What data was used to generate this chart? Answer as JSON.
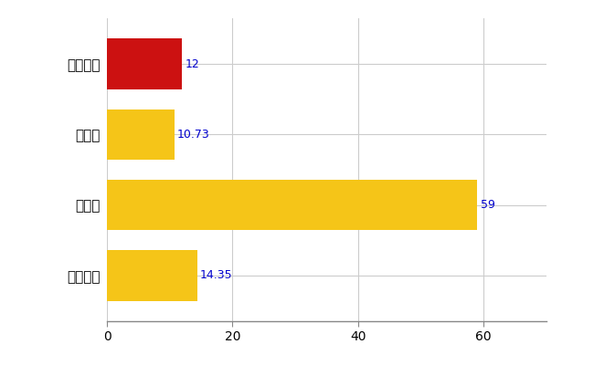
{
  "categories": [
    "大船渡市",
    "県平均",
    "県最大",
    "全国平均"
  ],
  "values": [
    12,
    10.73,
    59,
    14.35
  ],
  "bar_colors": [
    "#cc1111",
    "#f5c518",
    "#f5c518",
    "#f5c518"
  ],
  "value_labels": [
    "12",
    "10.73",
    "59",
    "14.35"
  ],
  "label_color": "#0000cc",
  "xlim": [
    0,
    70
  ],
  "xticks": [
    0,
    20,
    40,
    60
  ],
  "background_color": "#ffffff",
  "grid_color": "#cccccc",
  "bar_height": 0.72,
  "figsize": [
    6.5,
    4.0
  ],
  "dpi": 100,
  "label_fontsize": 9,
  "tick_fontsize": 10,
  "ytick_fontsize": 11
}
